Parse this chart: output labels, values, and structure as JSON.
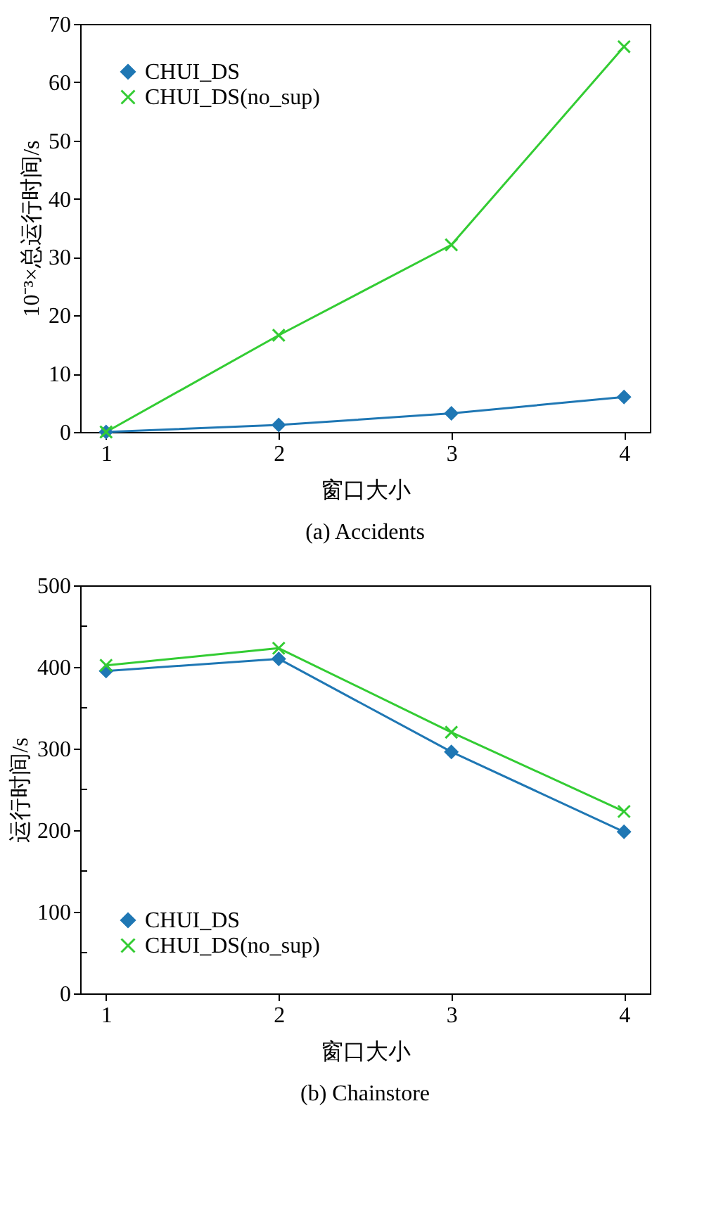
{
  "chart_data": [
    {
      "type": "line",
      "title": "(a)  Accidents",
      "xlabel": "窗口大小",
      "ylabel": "10⁻³×总运行时间/s",
      "x": [
        1,
        2,
        3,
        4
      ],
      "xlim": [
        0.85,
        4.15
      ],
      "xticks": [
        1,
        2,
        3,
        4
      ],
      "ylim": [
        0,
        70
      ],
      "yticks": [
        0,
        10,
        20,
        30,
        40,
        50,
        60,
        70
      ],
      "grid": false,
      "legend": "top left",
      "series": [
        {
          "name": "CHUI_DS",
          "color": "#1f77b4",
          "marker": "diamond",
          "values": [
            0,
            1.2,
            3.2,
            6
          ]
        },
        {
          "name": "CHUI_DS(no_sup)",
          "color": "#33cc33",
          "marker": "cross",
          "values": [
            0,
            16.6,
            32.1,
            66.1
          ]
        }
      ]
    },
    {
      "type": "line",
      "title": "(b)  Chainstore",
      "xlabel": "窗口大小",
      "ylabel": "运行时间/s",
      "x": [
        1,
        2,
        3,
        4
      ],
      "xlim": [
        0.85,
        4.15
      ],
      "xticks": [
        1,
        2,
        3,
        4
      ],
      "ylim": [
        0,
        500
      ],
      "yticks": [
        0,
        {
          "value": 50,
          "label": null
        },
        100,
        {
          "value": 150,
          "label": null
        },
        200,
        {
          "value": 250,
          "label": null
        },
        300,
        {
          "value": 350,
          "label": null
        },
        400,
        {
          "value": 450,
          "label": null
        },
        500
      ],
      "grid": false,
      "legend": "bottom left",
      "series": [
        {
          "name": "CHUI_DS",
          "color": "#1f77b4",
          "marker": "diamond",
          "values": [
            395,
            410,
            296,
            198
          ]
        },
        {
          "name": "CHUI_DS(no_sup)",
          "color": "#33cc33",
          "marker": "cross",
          "values": [
            402,
            423,
            320,
            223
          ]
        }
      ]
    }
  ]
}
